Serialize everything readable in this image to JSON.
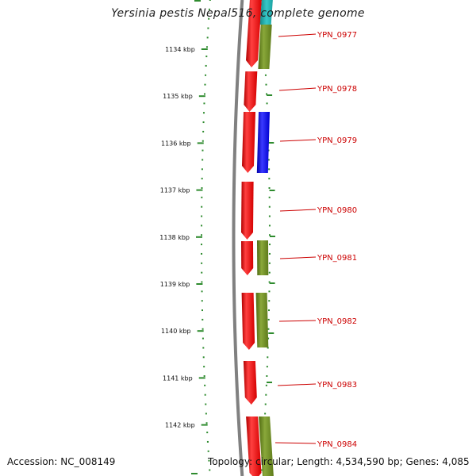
{
  "title": "Yersinia pestis Nepal516, complete genome",
  "footer": {
    "accession": "Accession: NC_008149",
    "topology": "Topology: circular; Length: 4,534,590 bp; Genes: 4,085"
  },
  "colors": {
    "forward_gene": "#ff0000",
    "reverse_gene_olive": "#6b8e23",
    "reverse_gene_blue": "#0000ff",
    "top_gene_teal": "#1ba7a7",
    "backbone": "#808080",
    "tick": "#2e8b2e",
    "gene_label": "#cc0000"
  },
  "ruler": [
    {
      "label": "1134 kbp",
      "kbp": 1134
    },
    {
      "label": "1135 kbp",
      "kbp": 1135
    },
    {
      "label": "1136 kbp",
      "kbp": 1136
    },
    {
      "label": "1137 kbp",
      "kbp": 1137
    },
    {
      "label": "1138 kbp",
      "kbp": 1138
    },
    {
      "label": "1139 kbp",
      "kbp": 1139
    },
    {
      "label": "1140 kbp",
      "kbp": 1140
    },
    {
      "label": "1141 kbp",
      "kbp": 1141
    },
    {
      "label": "1142 kbp",
      "kbp": 1142
    }
  ],
  "genes": [
    {
      "label": "YPN_0977"
    },
    {
      "label": "YPN_0978"
    },
    {
      "label": "YPN_0979"
    },
    {
      "label": "YPN_0980"
    },
    {
      "label": "YPN_0981"
    },
    {
      "label": "YPN_0982"
    },
    {
      "label": "YPN_0983"
    },
    {
      "label": "YPN_0984"
    }
  ]
}
